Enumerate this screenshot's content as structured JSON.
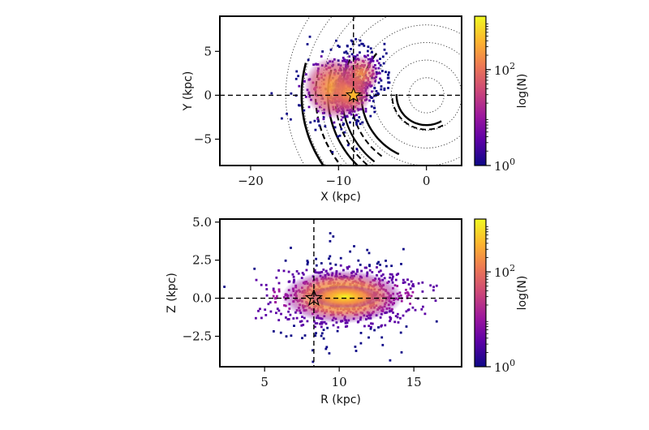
{
  "chart_data": [
    {
      "type": "heatmap",
      "panel": "top",
      "title": "",
      "xlabel": "X (kpc)",
      "ylabel": "Y (kpc)",
      "xlim": [
        -23.5,
        4
      ],
      "ylim": [
        -8,
        9
      ],
      "xticks": [
        -20,
        -10,
        0
      ],
      "yticks": [
        -5,
        0,
        5
      ],
      "xtick_labels": [
        "−20",
        "−10",
        "0"
      ],
      "ytick_labels": [
        "−5",
        "0",
        "5"
      ],
      "sun_marker": {
        "x": -8.3,
        "y": 0
      },
      "reference_lines": {
        "x": -8.3,
        "y": 0
      },
      "dotted_circle_radii": [
        2,
        4,
        6,
        8,
        10,
        12,
        14,
        16
      ],
      "colorbar": {
        "label": "log(N)",
        "scale": "log",
        "tick_labels": [
          "10^0",
          "10^2"
        ],
        "tick_values": [
          1,
          100
        ],
        "range": [
          1,
          1300
        ],
        "colormap": "plasma"
      },
      "density_clusters": [
        {
          "x": -10.5,
          "y": 0.8,
          "spread": 1.8,
          "weight": 1.0
        },
        {
          "x": -8.6,
          "y": 0.2,
          "spread": 1.2,
          "weight": 0.6
        },
        {
          "x": -7.5,
          "y": 2.4,
          "spread": 1.1,
          "weight": 0.35
        }
      ]
    },
    {
      "type": "heatmap",
      "panel": "bottom",
      "title": "",
      "xlabel": "R (kpc)",
      "ylabel": "Z (kpc)",
      "xlim": [
        2,
        18.2
      ],
      "ylim": [
        -4.5,
        5.2
      ],
      "xticks": [
        5,
        10,
        15
      ],
      "yticks": [
        -2.5,
        0.0,
        2.5,
        5.0
      ],
      "xtick_labels": [
        "5",
        "10",
        "15"
      ],
      "ytick_labels": [
        "−2.5",
        "0.0",
        "2.5",
        "5.0"
      ],
      "sun_marker": {
        "x": 8.3,
        "y": 0.0
      },
      "reference_lines": {
        "x": 8.3,
        "y": 0.0
      },
      "colorbar": {
        "label": "log(N)",
        "scale": "log",
        "tick_labels": [
          "10^0",
          "10^2"
        ],
        "tick_values": [
          1,
          100
        ],
        "range": [
          1,
          1300
        ],
        "colormap": "plasma"
      },
      "density_clusters": [
        {
          "x": 10.2,
          "y": 0.1,
          "spread_x": 2.2,
          "spread_y": 0.55,
          "weight": 1.0
        }
      ]
    }
  ],
  "colors": {
    "plasma": [
      "#0d0887",
      "#5c01a6",
      "#9c179e",
      "#cc4778",
      "#ed7953",
      "#fdb42f",
      "#f0f921"
    ],
    "axes": "#000000",
    "scatter": "#2b1b8f"
  }
}
